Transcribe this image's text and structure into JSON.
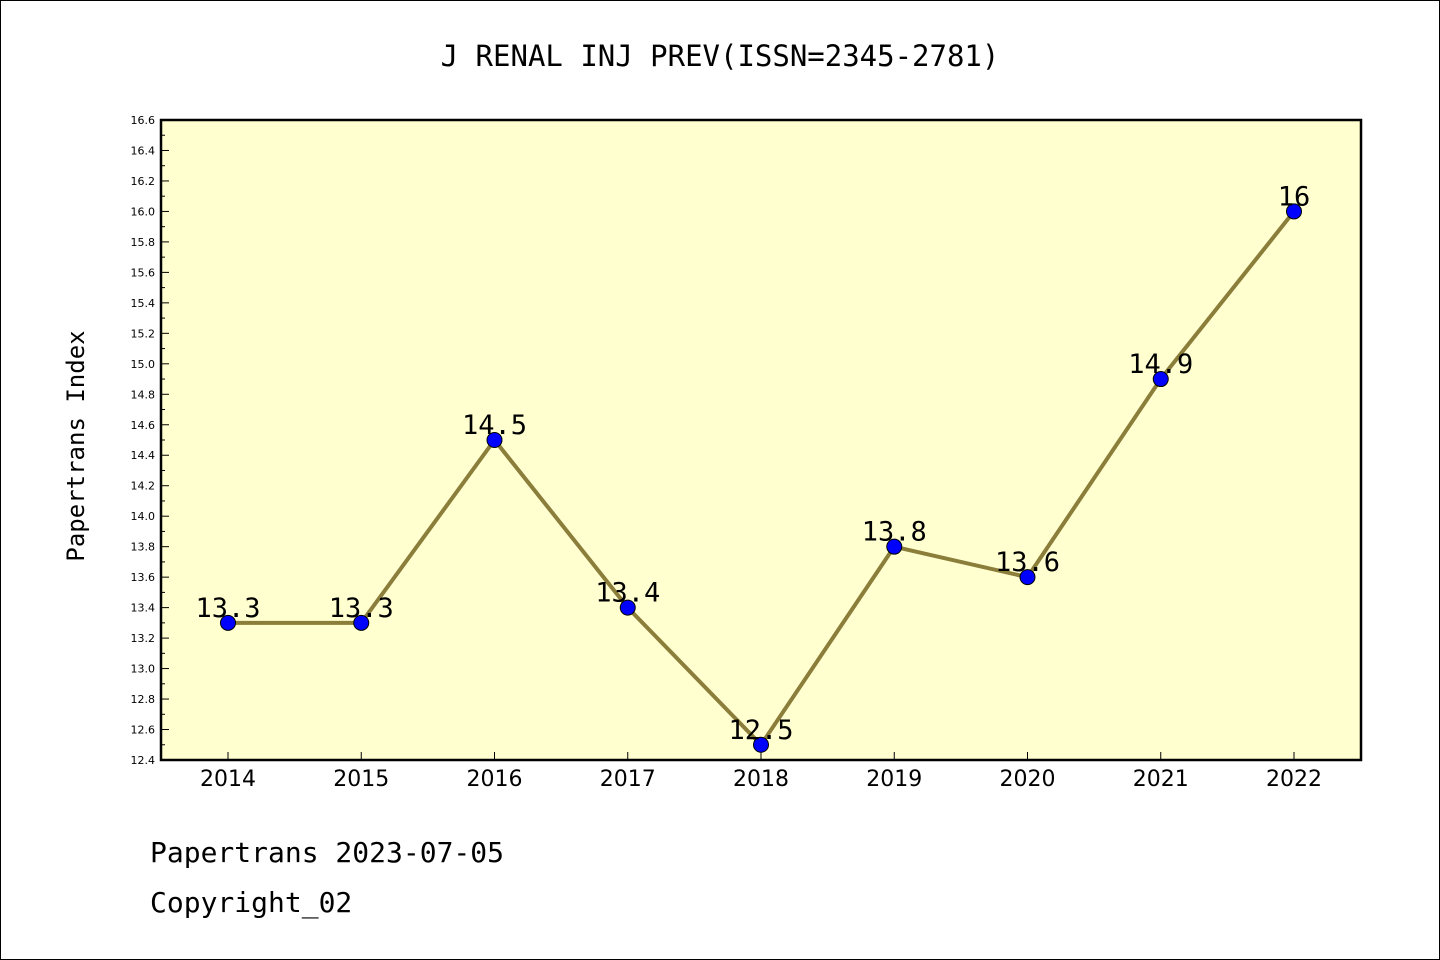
{
  "chart_data": {
    "type": "line",
    "title": "J RENAL INJ PREV(ISSN=2345-2781)",
    "xlabel": "",
    "ylabel": "Papertrans Index",
    "categories": [
      "2014",
      "2015",
      "2016",
      "2017",
      "2018",
      "2019",
      "2020",
      "2021",
      "2022"
    ],
    "series": [
      {
        "values": [
          13.3,
          13.3,
          14.5,
          13.4,
          12.5,
          13.8,
          13.6,
          14.9,
          16
        ],
        "data_labels": [
          "13.3",
          "13.3",
          "14.5",
          "13.4",
          "12.5",
          "13.8",
          "13.6",
          "14.9",
          "16"
        ]
      }
    ],
    "ylim": [
      12.4,
      16.6
    ],
    "yticks": [
      "12.4",
      "12.6",
      "12.8",
      "13.0",
      "13.2",
      "13.4",
      "13.6",
      "13.8",
      "14.0",
      "14.2",
      "14.4",
      "14.6",
      "14.8",
      "15.0",
      "15.2",
      "15.4",
      "15.6",
      "15.8",
      "16.0",
      "16.2",
      "16.4",
      "16.6"
    ],
    "grid": false,
    "colors": {
      "plot_background": "#FFFFD0",
      "line": "#8B7D3A",
      "marker": "#0000FF"
    }
  },
  "footer": {
    "line1": "Papertrans 2023-07-05",
    "line2": "Copyright_02"
  }
}
